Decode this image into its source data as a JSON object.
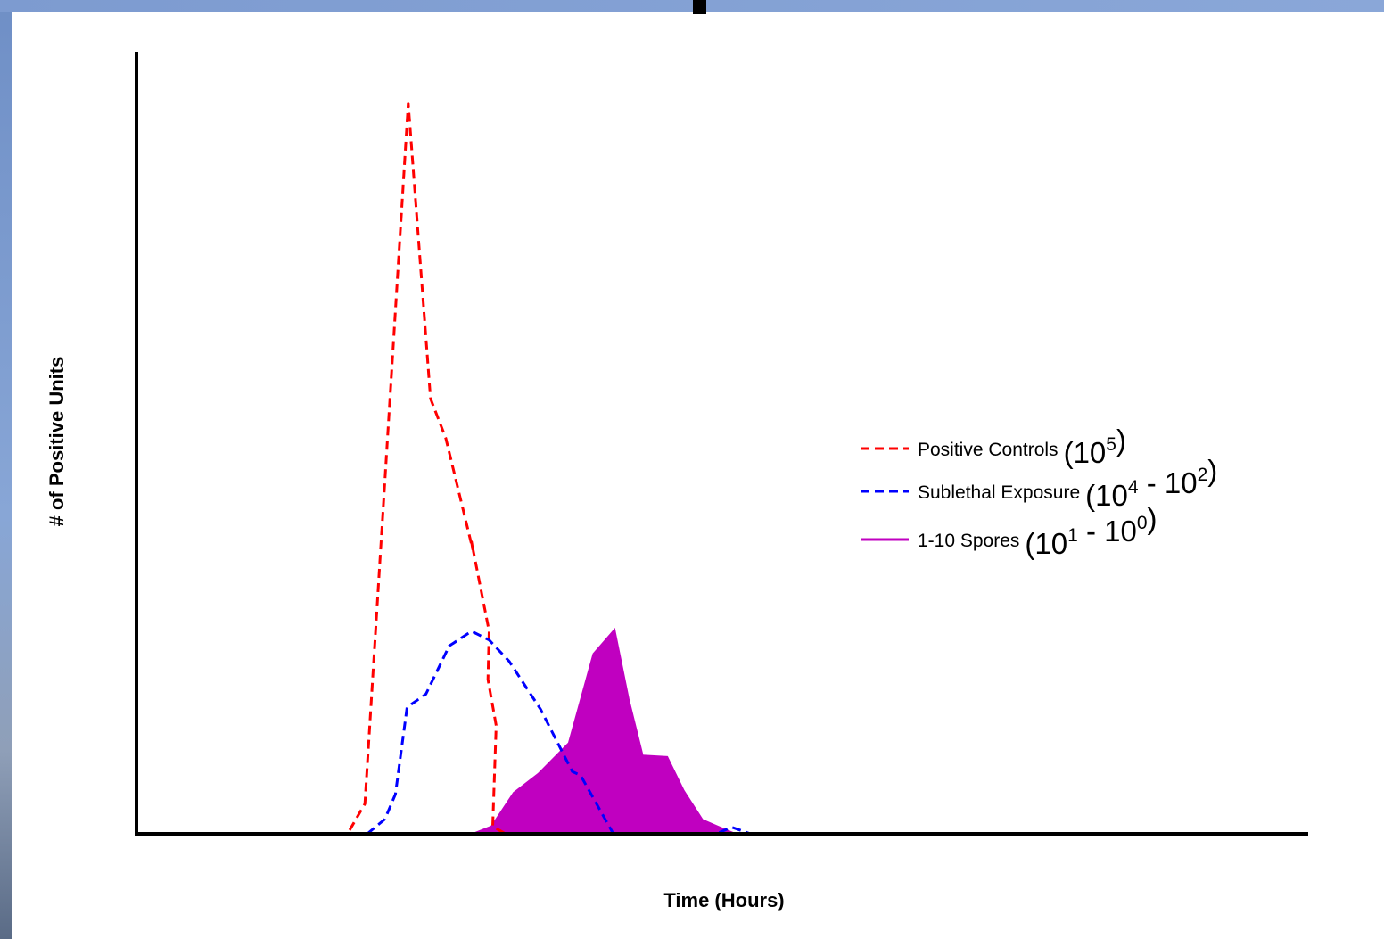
{
  "chart_data": {
    "type": "line",
    "xlabel": "Time (Hours)",
    "ylabel": "# of Positive Units",
    "xlim": [
      0,
      100
    ],
    "ylim": [
      0,
      100
    ],
    "grid": false,
    "legend_position": "right",
    "series": [
      {
        "name": "Positive Controls",
        "range_label": {
          "base1": "10",
          "exp1": "5",
          "sep": "",
          "base2": "",
          "exp2": ""
        },
        "style": "dashed",
        "color": "#ff0000",
        "x": [
          18.2,
          19.5,
          23.2,
          25.1,
          26.4,
          28.7,
          28.6,
          30.1,
          30.0,
          30.7,
          30.4,
          31.5
        ],
        "y": [
          0.5,
          4.1,
          99.9,
          59.5,
          54.1,
          38.9,
          39.9,
          27.7,
          21.1,
          14.8,
          1.0,
          0.0
        ]
      },
      {
        "name": "Sublethal Exposure",
        "range_label": {
          "base1": "10",
          "exp1": "4",
          "sep": " - ",
          "base2": "10",
          "exp2": "2"
        },
        "style": "dashed",
        "color": "#0000ff",
        "x": [
          19.7,
          21.2,
          22.1,
          23.1,
          24.7,
          26.7,
          28.6,
          30.1,
          31.8,
          34.5,
          37.2,
          37.9,
          40.7,
          49.5,
          50.8,
          52.4
        ],
        "y": [
          0.0,
          2.0,
          5.4,
          17.3,
          19.1,
          25.7,
          27.7,
          26.5,
          23.6,
          17.0,
          8.5,
          8.0,
          0.0,
          0.0,
          0.9,
          0.0
        ]
      },
      {
        "name": "1-10 Spores",
        "range_label": {
          "base1": "10",
          "exp1": "1",
          "sep": " - ",
          "base2": "10",
          "exp2": "0"
        },
        "style": "filled",
        "color": "#c000c0",
        "x": [
          28.7,
          30.3,
          32.2,
          34.3,
          36.9,
          39.0,
          40.8,
          42.0,
          43.2,
          45.3,
          46.7,
          48.3,
          49.6,
          51.1
        ],
        "y": [
          0.0,
          1.0,
          5.6,
          8.2,
          12.4,
          24.6,
          27.9,
          18.4,
          10.7,
          10.5,
          5.9,
          1.9,
          1.0,
          0.0
        ]
      }
    ]
  }
}
